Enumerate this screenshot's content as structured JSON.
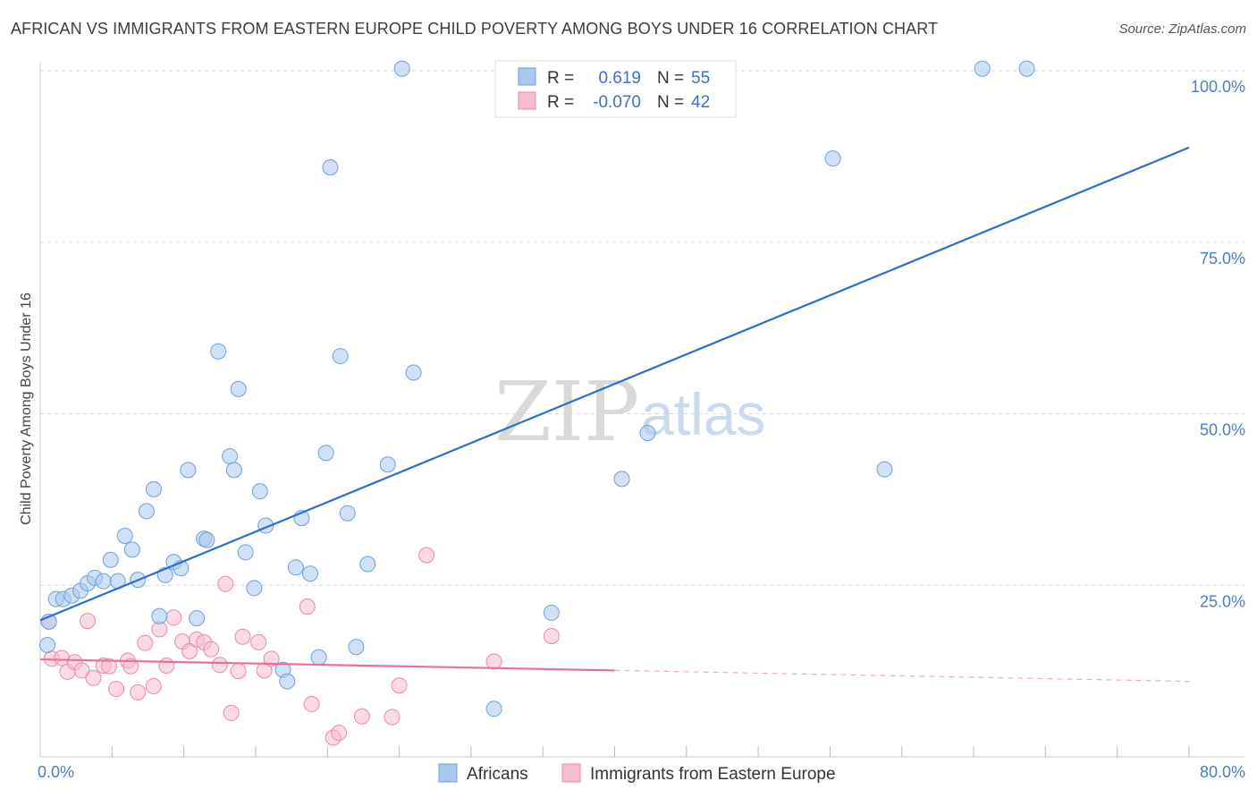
{
  "title": "AFRICAN VS IMMIGRANTS FROM EASTERN EUROPE CHILD POVERTY AMONG BOYS UNDER 16 CORRELATION CHART",
  "source": "Source: ZipAtlas.com",
  "watermark": {
    "zip": "ZIP",
    "atlas": "atlas"
  },
  "colors": {
    "africans_fill": "#aac8ee",
    "africans_stroke": "#6f9fdc",
    "africans_line": "#2a6fd0",
    "eastern_fill": "#f6bcd0",
    "eastern_stroke": "#e98aab",
    "eastern_line": "#e8709a",
    "grid": "#d8d8d8",
    "tick_text": "#4a7cc7"
  },
  "legend": {
    "rows": [
      {
        "r_label": "R =",
        "r_value": "0.619",
        "n_label": "N =",
        "n_value": "55"
      },
      {
        "r_label": "R =",
        "r_value": "-0.070",
        "n_label": "N =",
        "n_value": "42"
      }
    ]
  },
  "chart_data": {
    "type": "scatter",
    "title": "AFRICAN VS IMMIGRANTS FROM EASTERN EUROPE CHILD POVERTY AMONG BOYS UNDER 16 CORRELATION CHART",
    "xlabel": "",
    "ylabel": "Child Poverty Among Boys Under 16",
    "xlim": [
      0,
      80
    ],
    "ylim": [
      0,
      100
    ],
    "x_tick_labels": [
      {
        "value": 0,
        "label": "0.0%"
      },
      {
        "value": 80,
        "label": "80.0%"
      }
    ],
    "y_tick_labels": [
      {
        "value": 25,
        "label": "25.0%"
      },
      {
        "value": 50,
        "label": "50.0%"
      },
      {
        "value": 75,
        "label": "75.0%"
      },
      {
        "value": 100,
        "label": "100.0%"
      }
    ],
    "series": [
      {
        "name": "Africans",
        "r": 0.619,
        "n": 55,
        "trend": {
          "x": [
            0,
            80
          ],
          "y": [
            19.9,
            88.8
          ]
        },
        "points": [
          [
            0.5,
            16.3
          ],
          [
            0.6,
            19.7
          ],
          [
            1.1,
            23
          ],
          [
            1.6,
            23
          ],
          [
            2.2,
            23.5
          ],
          [
            2.8,
            24.2
          ],
          [
            3.3,
            25.3
          ],
          [
            3.8,
            26.1
          ],
          [
            4.4,
            25.6
          ],
          [
            4.9,
            28.7
          ],
          [
            5.4,
            25.6
          ],
          [
            5.9,
            32.2
          ],
          [
            6.4,
            30.2
          ],
          [
            6.8,
            25.8
          ],
          [
            7.4,
            35.8
          ],
          [
            7.9,
            39
          ],
          [
            8.3,
            20.5
          ],
          [
            8.7,
            26.5
          ],
          [
            9.3,
            28.4
          ],
          [
            9.8,
            27.5
          ],
          [
            10.3,
            41.8
          ],
          [
            10.9,
            20.2
          ],
          [
            11.4,
            31.8
          ],
          [
            11.6,
            31.6
          ],
          [
            12.4,
            59.1
          ],
          [
            13.2,
            43.8
          ],
          [
            13.5,
            41.8
          ],
          [
            13.8,
            53.6
          ],
          [
            14.3,
            29.8
          ],
          [
            14.9,
            24.6
          ],
          [
            15.3,
            38.7
          ],
          [
            15.7,
            33.7
          ],
          [
            16.9,
            12.7
          ],
          [
            17.2,
            11
          ],
          [
            17.8,
            27.6
          ],
          [
            18.2,
            34.8
          ],
          [
            18.8,
            26.7
          ],
          [
            19.4,
            14.5
          ],
          [
            19.9,
            44.3
          ],
          [
            20.2,
            85.9
          ],
          [
            20.9,
            58.4
          ],
          [
            21.4,
            35.5
          ],
          [
            22,
            16
          ],
          [
            22.8,
            28.1
          ],
          [
            24.2,
            42.6
          ],
          [
            25.2,
            100.3
          ],
          [
            26,
            56
          ],
          [
            31.6,
            7
          ],
          [
            35.6,
            21
          ],
          [
            40.5,
            40.5
          ],
          [
            42.3,
            47.2
          ],
          [
            55.2,
            87.2
          ],
          [
            58.8,
            41.9
          ],
          [
            65.6,
            100.3
          ],
          [
            68.7,
            100.3
          ]
        ]
      },
      {
        "name": "Immigrants from Eastern Europe",
        "r": -0.07,
        "n": 42,
        "trend": {
          "x": [
            0,
            40
          ],
          "y": [
            14.2,
            12.6
          ],
          "dashed_to": {
            "x": 80,
            "y": 11.0
          }
        },
        "points": [
          [
            0.6,
            19.7
          ],
          [
            0.8,
            14.3
          ],
          [
            1.5,
            14.4
          ],
          [
            1.9,
            12.4
          ],
          [
            2.4,
            13.8
          ],
          [
            2.9,
            12.6
          ],
          [
            3.3,
            19.8
          ],
          [
            3.7,
            11.5
          ],
          [
            4.4,
            13.3
          ],
          [
            4.8,
            13.2
          ],
          [
            5.3,
            9.9
          ],
          [
            6.1,
            14
          ],
          [
            6.3,
            13.2
          ],
          [
            6.8,
            9.4
          ],
          [
            7.3,
            16.6
          ],
          [
            7.9,
            10.3
          ],
          [
            8.3,
            18.6
          ],
          [
            8.8,
            13.3
          ],
          [
            9.3,
            20.3
          ],
          [
            9.9,
            16.8
          ],
          [
            10.4,
            15.4
          ],
          [
            10.9,
            17.1
          ],
          [
            11.4,
            16.7
          ],
          [
            11.9,
            15.7
          ],
          [
            12.5,
            13.4
          ],
          [
            12.9,
            25.2
          ],
          [
            13.3,
            6.4
          ],
          [
            13.8,
            12.5
          ],
          [
            14.1,
            17.5
          ],
          [
            15.2,
            16.7
          ],
          [
            15.6,
            12.6
          ],
          [
            16.1,
            14.3
          ],
          [
            18.6,
            21.9
          ],
          [
            18.9,
            7.7
          ],
          [
            20.4,
            2.8
          ],
          [
            20.8,
            3.5
          ],
          [
            22.4,
            5.9
          ],
          [
            24.5,
            5.8
          ],
          [
            25,
            10.4
          ],
          [
            31.6,
            13.9
          ],
          [
            35.6,
            17.6
          ],
          [
            26.9,
            29.4
          ]
        ]
      }
    ],
    "legend_position": "top-center"
  },
  "bottom_legend": {
    "items": [
      "Africans",
      "Immigrants from Eastern Europe"
    ]
  }
}
